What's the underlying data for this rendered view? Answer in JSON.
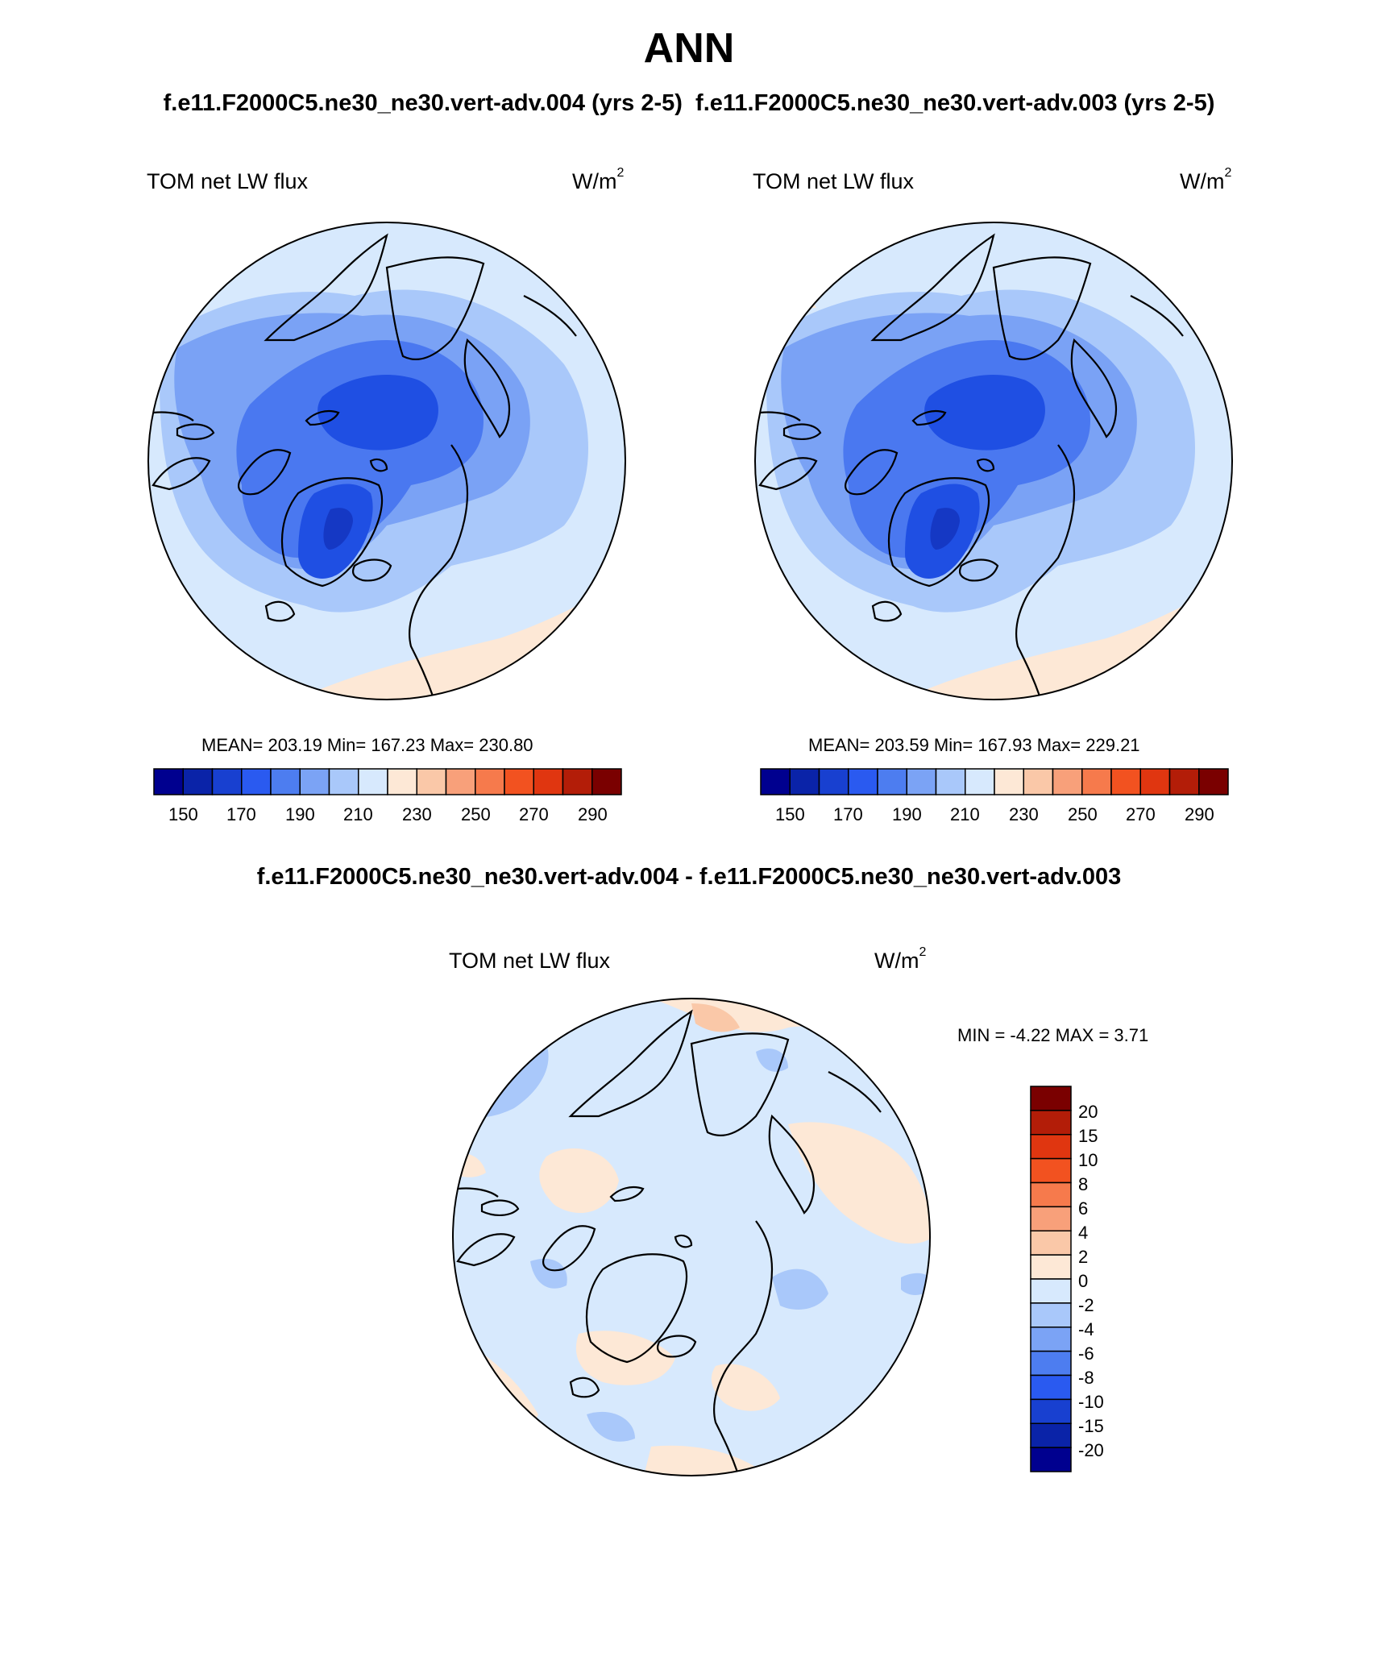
{
  "title": "ANN",
  "case_titles": "f.e11.F2000C5.ne30_ne30.vert-adv.004 (yrs 2-5)  f.e11.F2000C5.ne30_ne30.vert-adv.003 (yrs 2-5)",
  "diff_title": "f.e11.F2000C5.ne30_ne30.vert-adv.004 - f.e11.F2000C5.ne30_ne30.vert-adv.003",
  "panels": [
    {
      "variable": "TOM net LW flux",
      "units_base": "W/m",
      "units_exp": "2",
      "stats": "MEAN= 203.19  Min= 167.23  Max= 230.80"
    },
    {
      "variable": "TOM net LW flux",
      "units_base": "W/m",
      "units_exp": "2",
      "stats": "MEAN= 203.59  Min= 167.93  Max= 229.21"
    },
    {
      "variable": "TOM net LW flux",
      "units_base": "W/m",
      "units_exp": "2",
      "stats": "MIN =  -4.22 MAX =   3.71"
    }
  ],
  "colorbar_main": {
    "colors": [
      "#00008f",
      "#0a23a8",
      "#1840d0",
      "#2a5af0",
      "#4d7df0",
      "#7ba3f5",
      "#a9c8fa",
      "#d7e9fd",
      "#fde8d6",
      "#fac8a8",
      "#f8a07a",
      "#f67a4c",
      "#f25220",
      "#e03610",
      "#b31d08",
      "#7a0000"
    ],
    "labels": [
      "150",
      "170",
      "190",
      "210",
      "230",
      "250",
      "270",
      "290"
    ]
  },
  "colorbar_diff": {
    "colors": [
      "#00008f",
      "#0a23a8",
      "#1840d0",
      "#2a5af0",
      "#4d7df0",
      "#7ba3f5",
      "#a9c8fa",
      "#d7e9fd",
      "#fde8d6",
      "#fac8a8",
      "#f8a07a",
      "#f67a4c",
      "#f25220",
      "#e03610",
      "#b31d08",
      "#7a0000"
    ],
    "labels": [
      "20",
      "15",
      "10",
      "8",
      "6",
      "4",
      "2",
      "0",
      "-2",
      "-4",
      "-6",
      "-8",
      "-10",
      "-15",
      "-20"
    ]
  },
  "map_colors": {
    "deep": "#1f4fe3",
    "darkest": "#1538c4",
    "dark": "#4a78f0",
    "mid": "#7aa2f5",
    "light": "#a9c8fa",
    "pale": "#d7e9fd",
    "warm": "#fde8d6",
    "warm2": "#fac8a8",
    "coast": "#000000"
  }
}
